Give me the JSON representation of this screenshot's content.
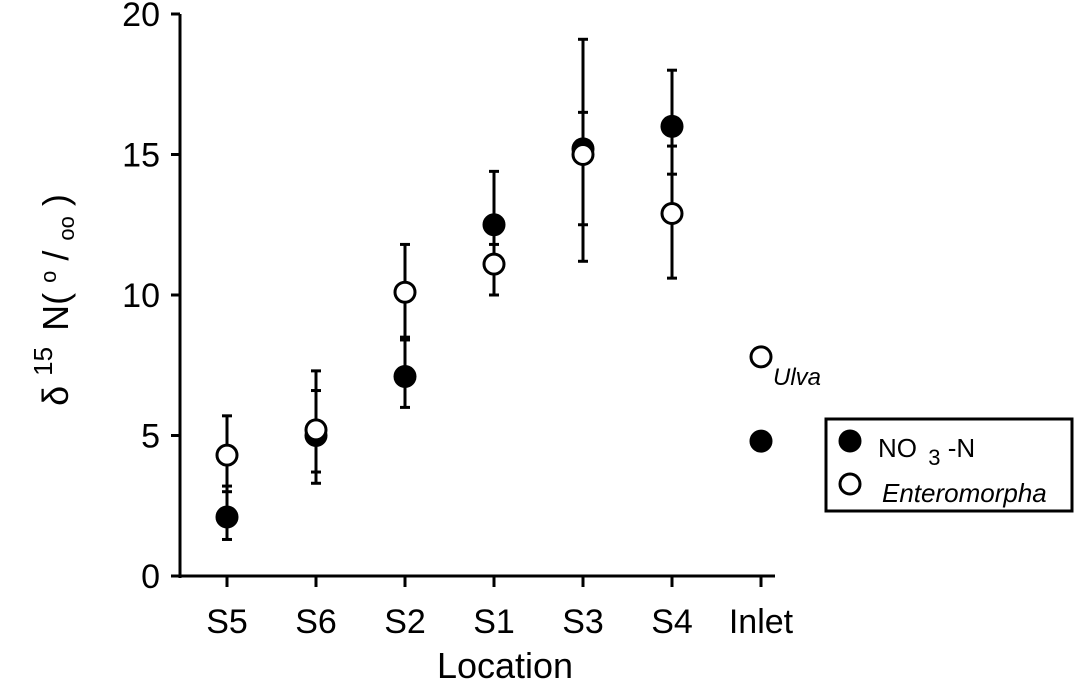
{
  "chart_data": {
    "type": "scatter",
    "xlabel": "Location",
    "ylabel": {
      "symbol": "δ",
      "sup": "15",
      "main": "N(",
      "permil_num": "o",
      "permil_slash": "/",
      "permil_den": "oo",
      "close": ")"
    },
    "categories": [
      "S5",
      "S6",
      "S2",
      "S1",
      "S3",
      "S4",
      "Inlet"
    ],
    "ylim": [
      0,
      20
    ],
    "yticks": [
      "0",
      "5",
      "10",
      "15",
      "20"
    ],
    "series": [
      {
        "name": "NO3-N",
        "marker": "filled",
        "points": [
          {
            "x": "S5",
            "y": 2.1,
            "err_low": 1.3,
            "err_high": 3.2
          },
          {
            "x": "S6",
            "y": 5.0,
            "err_low": 3.3,
            "err_high": 6.6
          },
          {
            "x": "S2",
            "y": 7.1,
            "err_low": 6.0,
            "err_high": 8.5
          },
          {
            "x": "S1",
            "y": 12.5,
            "err_low": 10.0,
            "err_high": 14.4
          },
          {
            "x": "S3",
            "y": 15.2,
            "err_low": 11.2,
            "err_high": 19.1
          },
          {
            "x": "S4",
            "y": 16.0,
            "err_low": 14.3,
            "err_high": 18.0
          },
          {
            "x": "Inlet",
            "y": 4.8
          }
        ]
      },
      {
        "name": "Enteromorpha",
        "marker": "open",
        "points": [
          {
            "x": "S5",
            "y": 4.3,
            "err_low": 3.0,
            "err_high": 5.7
          },
          {
            "x": "S6",
            "y": 5.2,
            "err_low": 3.7,
            "err_high": 7.3
          },
          {
            "x": "S2",
            "y": 10.1,
            "err_low": 8.4,
            "err_high": 11.8
          },
          {
            "x": "S1",
            "y": 11.1,
            "err_low": 10.0,
            "err_high": 11.8
          },
          {
            "x": "S3",
            "y": 15.0,
            "err_low": 12.5,
            "err_high": 16.5
          },
          {
            "x": "S4",
            "y": 12.9,
            "err_low": 10.6,
            "err_high": 15.3
          }
        ]
      },
      {
        "name": "Ulva",
        "marker": "open",
        "points": [
          {
            "x": "Inlet",
            "y": 7.8
          }
        ]
      }
    ],
    "annotation": {
      "text": "Ulva",
      "series": "Ulva"
    },
    "legend": {
      "position": "right",
      "entries": [
        {
          "marker": "filled",
          "label_main": "NO",
          "label_sub": "3",
          "label_tail": "-N"
        },
        {
          "marker": "open",
          "label_main": "Enteromorpha"
        }
      ]
    }
  }
}
